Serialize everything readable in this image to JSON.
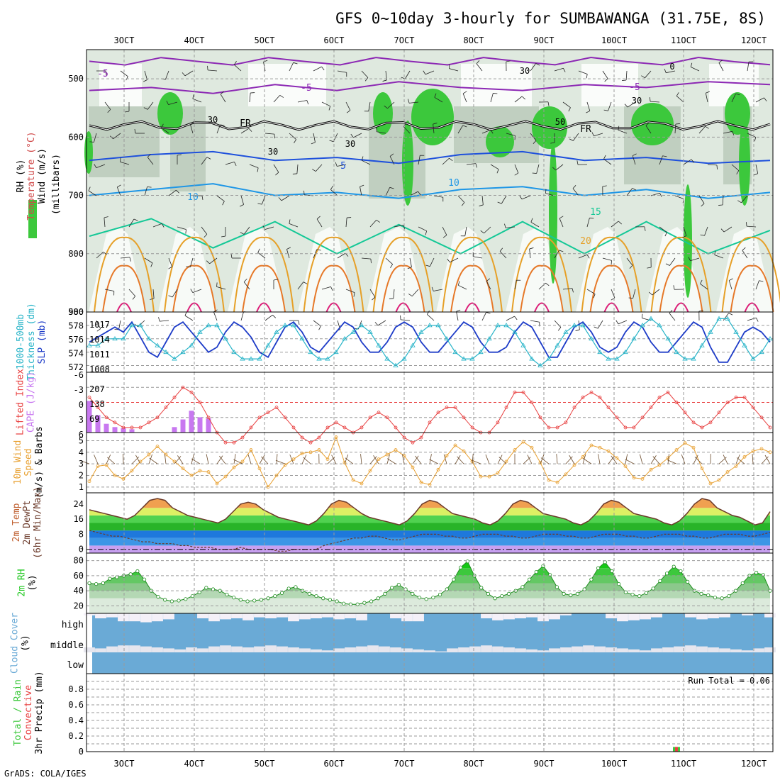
{
  "title": "GFS 0~10day 3-hourly for SUMBAWANGA (31.75E, 8S)",
  "footer": "GrADS: COLA/IGES",
  "dates": [
    "3OCT",
    "4OCT",
    "5OCT",
    "6OCT",
    "7OCT",
    "8OCT",
    "9OCT",
    "10OCT",
    "11OCT",
    "12OCT"
  ],
  "colors": {
    "rh_green": "#3cc83c",
    "cloud_blue": "#6aaad6",
    "cape": "#c878f0",
    "li": "#e84040",
    "wind": "#e8a030",
    "slp": "#1e3cc8",
    "thick": "#28b4c8",
    "rh2m": "#1ec81e"
  },
  "chart_data": [
    {
      "type": "contour",
      "name": "upper-air",
      "ylabel_parts": [
        "RH (%)",
        "Temperature (°C)",
        "Wind (m/s)"
      ],
      "ysublabel": "(millibars)",
      "yticks": [
        500,
        600,
        700,
        800,
        900
      ],
      "ylim": [
        450,
        900
      ],
      "temp_labels": [
        "-5",
        "-5",
        "-5",
        "5",
        "10",
        "10",
        "15",
        "20",
        "FR",
        "FR"
      ],
      "rh_labels": [
        "30",
        "30",
        "30",
        "30",
        "30",
        "50",
        "0"
      ],
      "isotherms": [
        {
          "label": "-5",
          "values": [
            520,
            515,
            525,
            510,
            520,
            505,
            515,
            520,
            510,
            515,
            505,
            510
          ]
        },
        {
          "label": "5",
          "values": [
            640,
            630,
            625,
            640,
            635,
            645,
            630,
            625,
            640,
            635,
            645,
            640
          ]
        },
        {
          "label": "10",
          "values": [
            700,
            690,
            680,
            700,
            695,
            705,
            690,
            685,
            700,
            690,
            705,
            695
          ]
        },
        {
          "label": "15",
          "values": [
            770,
            740,
            790,
            745,
            800,
            750,
            800,
            745,
            800,
            745,
            800,
            760
          ]
        }
      ]
    },
    {
      "type": "line",
      "name": "slp-thickness",
      "ylabel_parts": [
        "1000-500mb",
        "Thickness (dm)",
        "SLP (mb)"
      ],
      "left_ticks": [
        "580",
        "578",
        "576",
        "574",
        "572"
      ],
      "right_ticks": [
        "1017",
        "1014",
        "1011",
        "1008"
      ],
      "slp": [
        1013,
        1014,
        1015,
        1016,
        1015,
        1017,
        1014,
        1011,
        1010,
        1013,
        1016,
        1017,
        1015,
        1013,
        1011,
        1012,
        1015,
        1017,
        1016,
        1014,
        1011,
        1010,
        1013,
        1016,
        1017,
        1015,
        1012,
        1011,
        1013,
        1015,
        1017,
        1016,
        1013,
        1011,
        1011,
        1013,
        1016,
        1017,
        1016,
        1013,
        1011,
        1011,
        1013,
        1015,
        1017,
        1016,
        1013,
        1011,
        1011,
        1012,
        1015,
        1017,
        1016,
        1013,
        1010,
        1010,
        1013,
        1016,
        1017,
        1015,
        1012,
        1011,
        1012,
        1015,
        1017,
        1016,
        1013,
        1011,
        1011,
        1013,
        1015,
        1017,
        1016,
        1012,
        1009,
        1009,
        1012,
        1015,
        1016,
        1015,
        1013
      ],
      "thickness": [
        575,
        575,
        576,
        576,
        576,
        578,
        578,
        576,
        575,
        574,
        573,
        574,
        575,
        577,
        578,
        578,
        576,
        574,
        573,
        573,
        573,
        575,
        577,
        578,
        578,
        576,
        574,
        573,
        573,
        574,
        576,
        577,
        578,
        577,
        575,
        573,
        572,
        573,
        575,
        577,
        578,
        578,
        576,
        574,
        573,
        573,
        574,
        576,
        578,
        578,
        577,
        575,
        573,
        572,
        573,
        575,
        577,
        578,
        578,
        576,
        574,
        573,
        573,
        574,
        576,
        578,
        579,
        578,
        576,
        574,
        573,
        573,
        575,
        577,
        579,
        579,
        577,
        575,
        573,
        574,
        576
      ]
    },
    {
      "type": "bar",
      "name": "cape-lifted-index",
      "ylabel_parts": [
        "Lifted Index",
        "CAPE (J/kg)"
      ],
      "left_ticks": [
        "-6",
        "-3",
        "0",
        "3",
        "6"
      ],
      "right_ticks": [
        "207",
        "138",
        "69"
      ],
      "cape": [
        145,
        80,
        40,
        25,
        20,
        15,
        0,
        0,
        0,
        0,
        25,
        60,
        100,
        70,
        65,
        0,
        0,
        0,
        0,
        0,
        0,
        0,
        0,
        0,
        0,
        0,
        0,
        0,
        0,
        0,
        0,
        0,
        0,
        0,
        0,
        0,
        0,
        0,
        0,
        0,
        0,
        0,
        0,
        0,
        0,
        0,
        0,
        0,
        0,
        0,
        0,
        0,
        0,
        0,
        0,
        0,
        0,
        0,
        0,
        0,
        0,
        0,
        0,
        0,
        0,
        0,
        0,
        0,
        0,
        0,
        0,
        0,
        0,
        0,
        0,
        0,
        0,
        0,
        0,
        0,
        0
      ],
      "lifted_index": [
        -1,
        1,
        3,
        4,
        5,
        5,
        5,
        4,
        3,
        1,
        -1,
        -3,
        -2,
        0,
        3,
        6,
        8,
        8,
        7,
        5,
        3,
        2,
        1,
        3,
        5,
        7,
        8,
        7,
        5,
        4,
        5,
        6,
        5,
        3,
        2,
        3,
        5,
        7,
        8,
        7,
        4,
        2,
        1,
        1,
        3,
        5,
        6,
        6,
        4,
        1,
        -2,
        -2,
        0,
        3,
        5,
        5,
        4,
        1,
        -1,
        -2,
        -1,
        1,
        3,
        5,
        5,
        3,
        1,
        -1,
        -2,
        0,
        2,
        4,
        5,
        4,
        2,
        0,
        -1,
        -1,
        1,
        3,
        5
      ]
    },
    {
      "type": "line",
      "name": "wind-10m",
      "ylabel_parts": [
        "10m Wind",
        "Speed",
        "(m/s) & Barbs"
      ],
      "left_ticks": [
        "5",
        "4",
        "3",
        "2",
        "1"
      ],
      "values": [
        1.5,
        2.8,
        2.9,
        2.0,
        1.7,
        2.4,
        3.2,
        3.8,
        4.5,
        3.8,
        3.2,
        2.6,
        2.0,
        2.4,
        2.3,
        1.3,
        1.9,
        2.7,
        3.2,
        4.2,
        2.6,
        1.0,
        2.0,
        2.9,
        3.4,
        3.9,
        4.0,
        4.2,
        3.4,
        5.3,
        3.1,
        1.6,
        1.3,
        2.4,
        3.4,
        3.8,
        4.2,
        3.7,
        2.7,
        1.4,
        1.2,
        2.5,
        3.7,
        4.6,
        4.1,
        3.2,
        1.9,
        1.9,
        2.2,
        3.2,
        4.2,
        4.9,
        4.4,
        3.1,
        1.6,
        1.4,
        2.1,
        2.9,
        3.6,
        4.6,
        4.4,
        4.1,
        3.5,
        2.8,
        1.8,
        1.7,
        2.5,
        2.9,
        3.5,
        4.2,
        4.8,
        4.4,
        2.6,
        1.3,
        1.6,
        2.3,
        2.8,
        3.6,
        4.1,
        4.3,
        4.0
      ]
    },
    {
      "type": "area",
      "name": "2m-temp",
      "ylabel_parts": [
        "2m Temp",
        "2m DewPt",
        "(6hr Min/Max)"
      ],
      "left_ticks": [
        "24",
        "16",
        "8",
        "0"
      ],
      "temp": [
        21,
        20,
        19,
        18,
        17,
        16,
        18,
        22,
        26,
        27,
        26,
        22,
        20,
        18,
        17,
        16,
        15,
        14,
        16,
        20,
        24,
        25,
        24,
        21,
        19,
        17,
        16,
        15,
        14,
        13,
        15,
        19,
        24,
        26,
        25,
        22,
        19,
        17,
        16,
        15,
        14,
        13,
        15,
        19,
        24,
        26,
        25,
        22,
        19,
        18,
        17,
        16,
        14,
        13,
        15,
        19,
        24,
        26,
        25,
        22,
        19,
        18,
        17,
        16,
        14,
        13,
        15,
        19,
        24,
        26,
        25,
        22,
        19,
        18,
        17,
        16,
        14,
        13,
        15,
        19,
        24,
        27,
        26,
        22,
        20,
        18,
        17,
        15,
        13,
        14,
        20
      ],
      "dewpt": [
        10,
        9,
        8,
        7,
        7,
        6,
        5,
        4,
        4,
        3,
        3,
        3,
        2,
        2,
        1,
        1,
        1,
        0,
        0,
        0,
        1,
        0,
        0,
        0,
        0,
        -1,
        -1,
        0,
        0,
        0,
        0,
        2,
        3,
        4,
        5,
        6,
        6,
        7,
        7,
        6,
        5,
        5,
        6,
        7,
        8,
        8,
        8,
        7,
        7,
        6,
        6,
        7,
        8,
        8,
        8,
        7,
        7,
        6,
        6,
        7,
        8,
        8,
        8,
        7,
        7,
        6,
        6,
        7,
        8,
        8,
        8,
        7,
        7,
        6,
        6,
        7,
        8,
        8,
        8,
        7,
        7,
        6,
        6,
        7,
        8,
        8,
        8,
        7,
        7,
        8,
        9
      ]
    },
    {
      "type": "area",
      "name": "2m-rh",
      "ylabel_parts": [
        "2m RH",
        "(%)"
      ],
      "left_ticks": [
        "80",
        "60",
        "40",
        "20"
      ],
      "values": [
        50,
        49,
        50,
        56,
        58,
        60,
        62,
        66,
        55,
        40,
        32,
        28,
        26,
        27,
        29,
        33,
        38,
        44,
        42,
        40,
        35,
        31,
        28,
        26,
        27,
        28,
        30,
        33,
        37,
        43,
        45,
        40,
        36,
        33,
        30,
        28,
        26,
        23,
        22,
        22,
        24,
        26,
        30,
        36,
        44,
        48,
        42,
        36,
        31,
        29,
        31,
        35,
        42,
        55,
        71,
        79,
        60,
        44,
        36,
        30,
        33,
        36,
        40,
        45,
        55,
        65,
        73,
        61,
        45,
        36,
        34,
        36,
        42,
        55,
        70,
        78,
        66,
        49,
        38,
        35,
        33,
        37,
        43,
        53,
        63,
        72,
        66,
        52,
        40,
        36,
        34,
        31,
        30,
        33,
        40,
        50,
        60,
        64,
        61,
        40
      ]
    },
    {
      "type": "bar",
      "name": "cloud-cover",
      "ylabel_parts": [
        "Cloud Cover",
        "(%)"
      ],
      "levels": [
        "high",
        "middle",
        "low"
      ],
      "high": [
        90,
        75,
        80,
        60,
        60,
        55,
        60,
        70,
        100,
        100,
        75,
        60,
        70,
        75,
        65,
        80,
        75,
        80,
        60,
        70,
        75,
        80,
        70,
        75,
        65,
        100,
        100,
        75,
        60,
        60,
        100,
        100,
        100,
        100,
        100,
        75,
        65,
        70,
        75,
        80,
        60,
        70,
        90,
        100,
        100,
        100,
        75,
        60,
        65,
        70,
        80,
        100,
        100,
        80,
        70,
        75,
        80,
        100,
        90,
        100,
        80
      ],
      "middle": [
        50,
        60,
        40,
        30,
        30,
        40,
        50,
        60,
        70,
        50,
        60,
        40,
        30,
        40,
        50,
        40,
        30,
        40,
        50,
        60,
        70,
        80,
        60,
        50,
        40,
        30,
        40,
        50,
        60,
        70,
        80,
        90,
        60,
        50,
        40,
        30,
        40,
        50,
        60,
        70,
        80,
        60,
        50,
        40,
        30,
        40,
        50,
        60,
        70,
        80,
        60,
        50,
        40,
        30,
        40,
        50,
        60,
        70,
        80,
        60,
        50
      ]
    },
    {
      "type": "bar",
      "name": "3hr-precip",
      "ylabel_parts": [
        "Total / Rain",
        "Convective",
        "3hr Precip (mm)"
      ],
      "left_ticks": [
        "0.8",
        "0.6",
        "0.4",
        "0.2",
        "0"
      ],
      "ylim": [
        0,
        1.0
      ],
      "run_total_label": "Run Total = 0.06",
      "precip_total": [
        0,
        0,
        0,
        0,
        0,
        0,
        0,
        0,
        0,
        0,
        0,
        0,
        0,
        0,
        0,
        0,
        0,
        0,
        0,
        0,
        0,
        0,
        0,
        0,
        0,
        0,
        0,
        0,
        0,
        0,
        0,
        0,
        0,
        0,
        0,
        0,
        0,
        0,
        0,
        0,
        0,
        0,
        0,
        0,
        0,
        0,
        0,
        0,
        0,
        0,
        0,
        0,
        0,
        0,
        0,
        0,
        0,
        0,
        0,
        0,
        0,
        0,
        0,
        0,
        0,
        0,
        0,
        0,
        0,
        0.06,
        0,
        0,
        0,
        0,
        0,
        0,
        0,
        0,
        0,
        0,
        0
      ],
      "precip_conv": [
        0,
        0,
        0,
        0,
        0,
        0,
        0,
        0,
        0,
        0,
        0,
        0,
        0,
        0,
        0,
        0,
        0,
        0,
        0,
        0,
        0,
        0,
        0,
        0,
        0,
        0,
        0,
        0,
        0,
        0,
        0,
        0,
        0,
        0,
        0,
        0,
        0,
        0,
        0,
        0,
        0,
        0,
        0,
        0,
        0,
        0,
        0,
        0,
        0,
        0,
        0,
        0,
        0,
        0,
        0,
        0,
        0,
        0,
        0,
        0,
        0,
        0,
        0,
        0,
        0,
        0,
        0,
        0,
        0,
        0.06,
        0,
        0,
        0,
        0,
        0,
        0,
        0,
        0,
        0,
        0,
        0
      ]
    }
  ]
}
